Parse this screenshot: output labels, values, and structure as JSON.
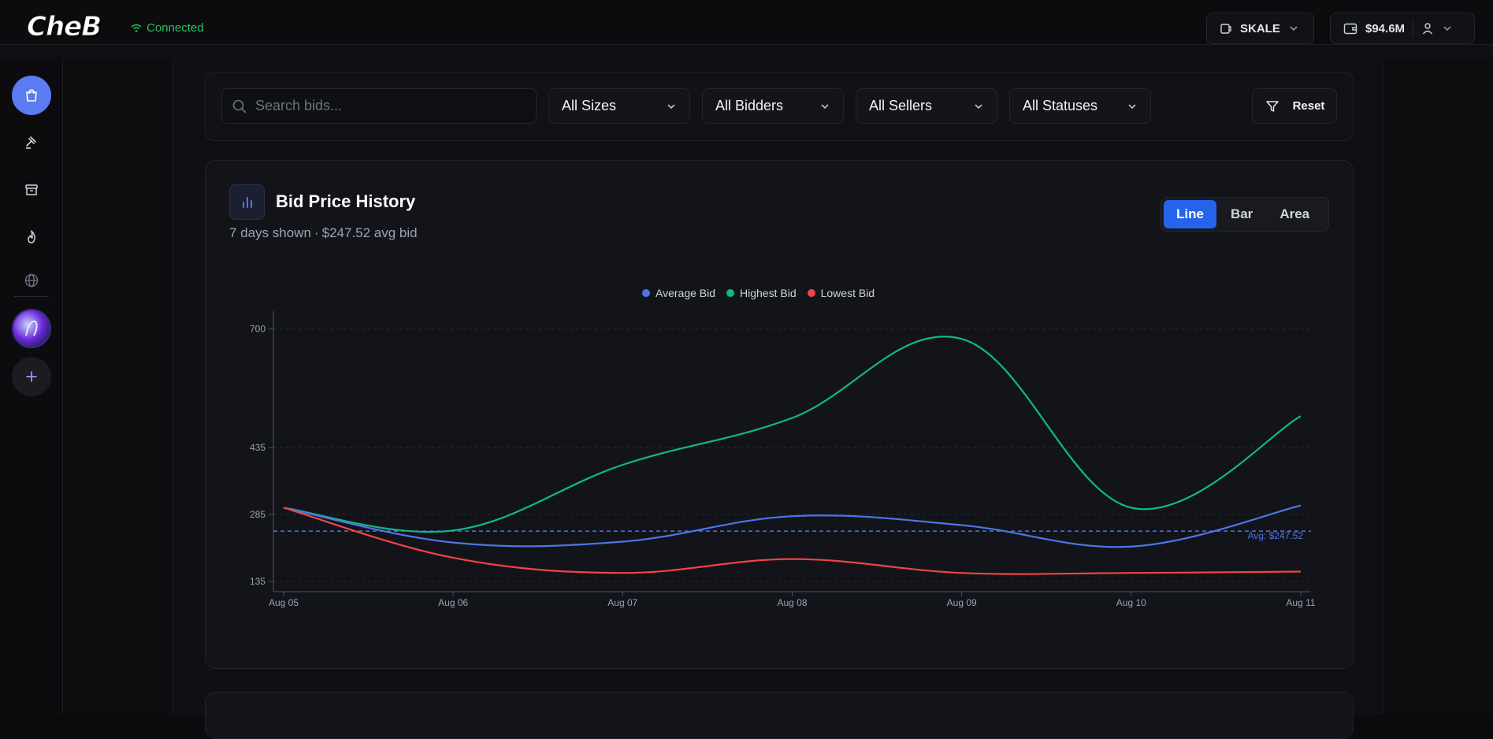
{
  "header": {
    "logo": "CheB",
    "connection_status": "Connected",
    "network": "SKALE",
    "balance": "$94.6M"
  },
  "filters": {
    "search_placeholder": "Search bids...",
    "sizes": "All Sizes",
    "bidders": "All Bidders",
    "sellers": "All Sellers",
    "statuses": "All Statuses",
    "reset": "Reset"
  },
  "chart_card": {
    "title": "Bid Price History",
    "days_shown": "7 days shown",
    "separator": "·",
    "avg_bid_text": "$247.52 avg bid",
    "view_options": [
      "Line",
      "Bar",
      "Area"
    ],
    "active_view": "Line"
  },
  "colors": {
    "average": "#4f74e8",
    "highest": "#10b981",
    "lowest": "#ef4444",
    "accent": "#2563eb"
  },
  "chart_data": {
    "type": "line",
    "x": [
      "Aug 05",
      "Aug 06",
      "Aug 07",
      "Aug 08",
      "Aug 09",
      "Aug 10",
      "Aug 11"
    ],
    "series": [
      {
        "name": "Average Bid",
        "color": "#4f74e8",
        "values": [
          300,
          222,
          224,
          281,
          261,
          213,
          305
        ]
      },
      {
        "name": "Highest Bid",
        "color": "#10b981",
        "values": [
          300,
          249,
          396,
          501,
          678,
          300,
          505
        ]
      },
      {
        "name": "Lowest Bid",
        "color": "#ef4444",
        "values": [
          300,
          188,
          154,
          185,
          154,
          154,
          157
        ]
      }
    ],
    "y_ticks": [
      135,
      285,
      435,
      700
    ],
    "ylim": [
      112,
      740
    ],
    "reference_line": {
      "value": 247.52,
      "label": "Avg: $247.52"
    },
    "grid": "horizontal dashed",
    "legend_position": "top-center"
  }
}
